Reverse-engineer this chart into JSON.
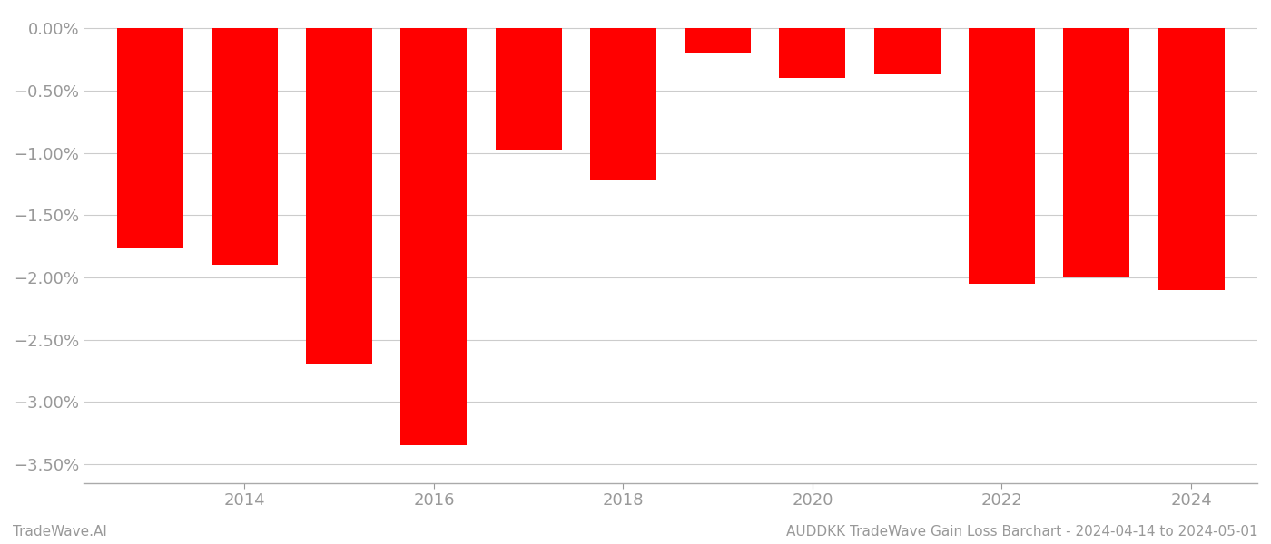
{
  "years": [
    2013,
    2014,
    2015,
    2016,
    2017,
    2018,
    2019,
    2020,
    2021,
    2022,
    2023,
    2024
  ],
  "values": [
    -1.76,
    -1.9,
    -2.7,
    -3.35,
    -0.97,
    -1.22,
    -0.2,
    -0.4,
    -0.37,
    -2.05,
    -2.0,
    -2.1
  ],
  "bar_color": "#ff0000",
  "background_color": "#ffffff",
  "ylim_min": -3.65,
  "ylim_max": 0.12,
  "yticks": [
    0.0,
    -0.5,
    -1.0,
    -1.5,
    -2.0,
    -2.5,
    -3.0,
    -3.5
  ],
  "xlabel": "",
  "ylabel": "",
  "title": "",
  "footnote_left": "TradeWave.AI",
  "footnote_right": "AUDDKK TradeWave Gain Loss Barchart - 2024-04-14 to 2024-05-01",
  "grid_color": "#cccccc",
  "tick_label_color": "#999999",
  "footnote_color": "#999999",
  "bar_width": 0.7,
  "xlim_min": 2012.3,
  "xlim_max": 2024.7,
  "xtick_years": [
    2014,
    2016,
    2018,
    2020,
    2022,
    2024
  ]
}
